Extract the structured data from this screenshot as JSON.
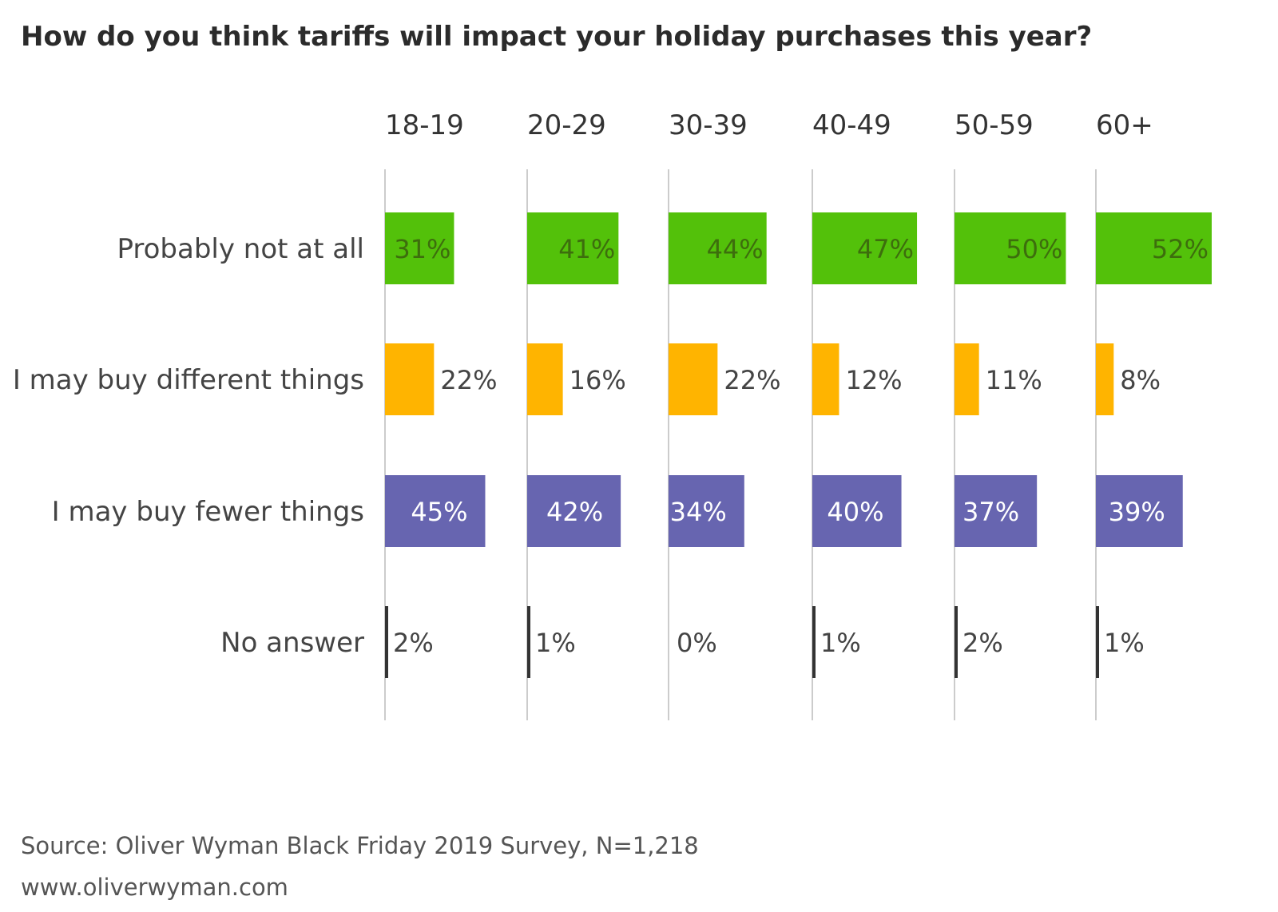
{
  "title": "How do you think tariffs will impact your holiday purchases this year?",
  "source": "Source: Oliver Wyman Black Friday 2019 Survey, N=1,218",
  "url": "www.oliverwyman.com",
  "colors": {
    "probably_not": "#53c10a",
    "different": "#ffb400",
    "fewer": "#6765b0",
    "no_answer": "#333333",
    "gridline": "#cccccc",
    "text": "#444444",
    "label_on_bar": "#3d6e0d",
    "label_on_purple": "#ffffff"
  },
  "chart_data": {
    "type": "bar",
    "orientation": "horizontal",
    "layout": "small-multiples",
    "unit": "%",
    "panels": [
      "18-19",
      "20-29",
      "30-39",
      "40-49",
      "50-59",
      "60+"
    ],
    "categories": [
      "Probably not at all",
      "I may buy different things",
      "I may buy fewer things",
      "No answer"
    ],
    "series": [
      {
        "name": "18-19",
        "values": [
          31,
          22,
          45,
          2
        ],
        "labels": [
          "31%",
          "22%",
          "45%",
          "2%"
        ]
      },
      {
        "name": "20-29",
        "values": [
          41,
          16,
          42,
          1
        ],
        "labels": [
          "41%",
          "16%",
          "42%",
          "1%"
        ]
      },
      {
        "name": "30-39",
        "values": [
          44,
          22,
          34,
          0
        ],
        "labels": [
          "44%",
          "22%",
          "34%",
          "0%"
        ]
      },
      {
        "name": "40-49",
        "values": [
          47,
          12,
          40,
          1
        ],
        "labels": [
          "47%",
          "12%",
          "40%",
          "1%"
        ]
      },
      {
        "name": "50-59",
        "values": [
          50,
          11,
          37,
          2
        ],
        "labels": [
          "50%",
          "11%",
          "37%",
          "2%"
        ]
      },
      {
        "name": "60+",
        "values": [
          52,
          8,
          39,
          1
        ],
        "labels": [
          "52%",
          "8%",
          "39%",
          "1%"
        ]
      }
    ],
    "xlim": [
      0,
      52
    ],
    "grid": true,
    "legend": "none"
  }
}
